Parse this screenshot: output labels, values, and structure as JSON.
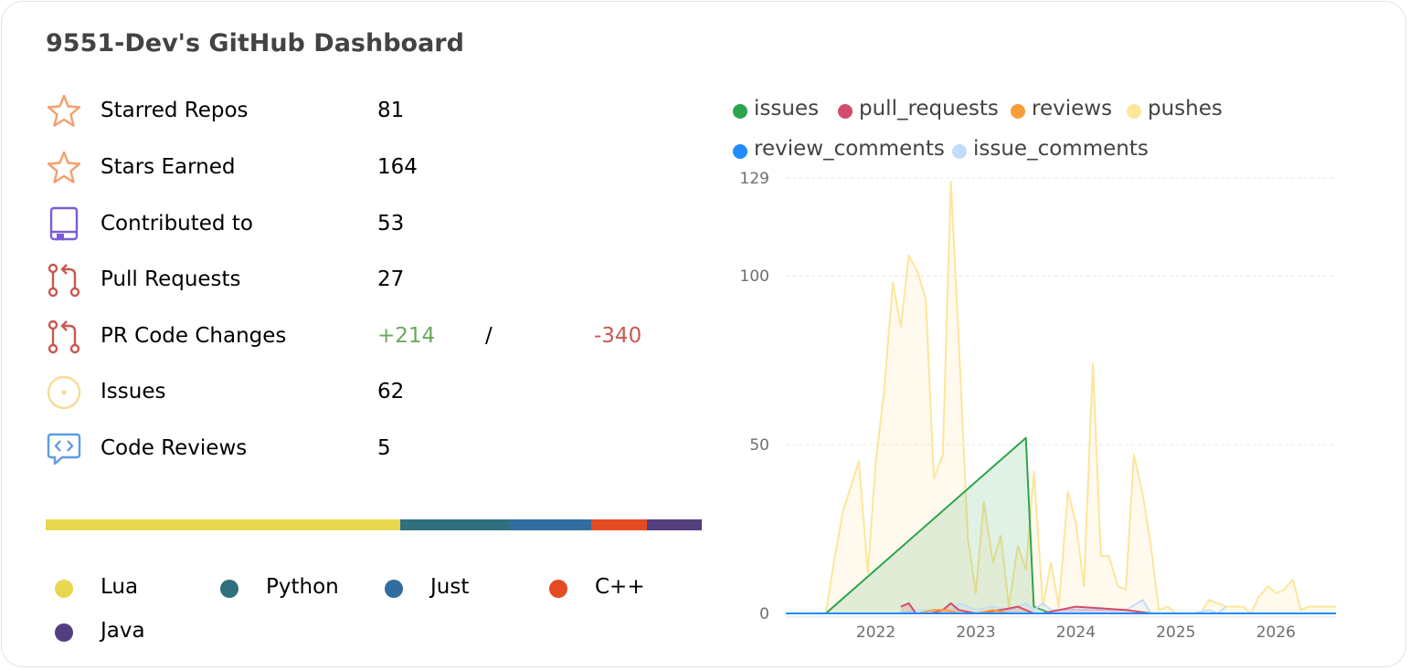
{
  "title": "9551-Dev's GitHub Dashboard",
  "stats": {
    "starred": {
      "label": "Starred Repos",
      "value": "81"
    },
    "earned": {
      "label": "Stars Earned",
      "value": "164"
    },
    "contributed": {
      "label": "Contributed to",
      "value": "53"
    },
    "prs": {
      "label": "Pull Requests",
      "value": "27"
    },
    "changes": {
      "label": "PR Code Changes",
      "additions": "+214",
      "separator": "/",
      "deletions": "-340"
    },
    "issues": {
      "label": "Issues",
      "value": "62"
    },
    "reviews": {
      "label": "Code Reviews",
      "value": "5"
    }
  },
  "icons": [
    "star-icon",
    "star-icon",
    "repo-icon",
    "pull-request-icon",
    "pull-request-icon",
    "issue-icon",
    "code-review-icon"
  ],
  "languages": [
    {
      "name": "Lua",
      "color": "#e8d84f",
      "fraction": 0.54
    },
    {
      "name": "Python",
      "color": "#2f6f7e",
      "fraction": 0.166
    },
    {
      "name": "Just",
      "color": "#336d9f",
      "fraction": 0.126
    },
    {
      "name": "C++",
      "color": "#e44b23",
      "fraction": 0.084
    },
    {
      "name": "Java",
      "color": "#533f7e",
      "fraction": 0.084
    }
  ],
  "chart_data": {
    "type": "area",
    "ylim": [
      0,
      129
    ],
    "yticks": [
      0,
      50,
      100,
      129
    ],
    "xlim": [
      2021.1,
      2026.6
    ],
    "xticks": [
      2022,
      2023,
      2024,
      2025,
      2026
    ],
    "legend_position": "top",
    "grid": true,
    "series": [
      {
        "name": "issues",
        "color": "#2da44e",
        "x": [
          2021.1,
          2021.5,
          2023.5,
          2023.58,
          2023.75,
          2024.0,
          2025.0,
          2025.5
        ],
        "y": [
          0,
          0,
          52,
          2,
          0,
          0,
          0,
          0
        ]
      },
      {
        "name": "pull_requests",
        "color": "#d14d6b",
        "x": [
          2022.25,
          2022.33,
          2022.4,
          2022.55,
          2022.67,
          2022.75,
          2022.83,
          2023.0,
          2023.25,
          2023.42,
          2023.58,
          2023.67,
          2023.83,
          2024.0,
          2024.5,
          2024.75
        ],
        "y": [
          2,
          3,
          0,
          0,
          1,
          3,
          1,
          0,
          1,
          2,
          0,
          0,
          1,
          2,
          1,
          0
        ]
      },
      {
        "name": "reviews",
        "color": "#f79c3a",
        "x": [
          2022.33,
          2022.42,
          2022.58,
          2022.7,
          2022.83,
          2023.0,
          2023.17,
          2023.33
        ],
        "y": [
          0,
          0,
          1,
          1,
          0,
          0,
          1,
          0
        ]
      },
      {
        "name": "pushes",
        "color": "#fde59a",
        "x": [
          2021.1,
          2021.5,
          2021.58,
          2021.67,
          2021.83,
          2021.92,
          2022.0,
          2022.08,
          2022.17,
          2022.25,
          2022.33,
          2022.42,
          2022.5,
          2022.58,
          2022.67,
          2022.75,
          2022.83,
          2022.92,
          2023.0,
          2023.08,
          2023.17,
          2023.25,
          2023.33,
          2023.42,
          2023.5,
          2023.58,
          2023.67,
          2023.75,
          2023.83,
          2023.92,
          2024.0,
          2024.08,
          2024.17,
          2024.25,
          2024.33,
          2024.42,
          2024.5,
          2024.58,
          2024.67,
          2024.75,
          2024.83,
          2024.92,
          2025.0,
          2025.08,
          2025.17,
          2025.25,
          2025.33,
          2025.42,
          2025.5,
          2025.58,
          2025.67,
          2025.75,
          2025.83,
          2025.92,
          2026.0,
          2026.08,
          2026.17,
          2026.25,
          2026.33,
          2026.42,
          2026.5,
          2026.6
        ],
        "y": [
          0,
          0,
          15,
          30,
          45,
          12,
          45,
          65,
          98,
          85,
          106,
          101,
          93,
          40,
          47,
          128,
          80,
          22,
          6,
          33,
          15,
          23,
          2,
          20,
          13,
          42,
          2,
          15,
          2,
          36,
          27,
          8,
          74,
          17,
          17,
          8,
          7,
          47,
          35,
          20,
          1,
          2,
          0,
          0,
          0,
          0,
          4,
          3,
          2,
          2,
          2,
          0,
          5,
          8,
          6,
          7,
          10,
          1,
          2,
          2,
          2,
          2
        ]
      },
      {
        "name": "review_comments",
        "color": "#218bff",
        "x": [
          2021.1,
          2026.6
        ],
        "y": [
          0,
          0
        ]
      },
      {
        "name": "issue_comments",
        "color": "#c2dcff",
        "x": [
          2021.1,
          2022.25,
          2022.42,
          2022.67,
          2022.75,
          2022.83,
          2023.0,
          2023.17,
          2023.33,
          2023.5,
          2023.58,
          2023.67,
          2023.75,
          2024.5,
          2024.67,
          2024.75,
          2025.0,
          2025.17,
          2025.33,
          2025.42,
          2025.5
        ],
        "y": [
          0,
          0,
          1,
          1,
          0,
          3,
          1,
          2,
          1,
          3,
          1,
          3,
          1,
          1,
          4,
          0,
          0,
          0,
          1,
          0,
          2
        ]
      }
    ]
  }
}
